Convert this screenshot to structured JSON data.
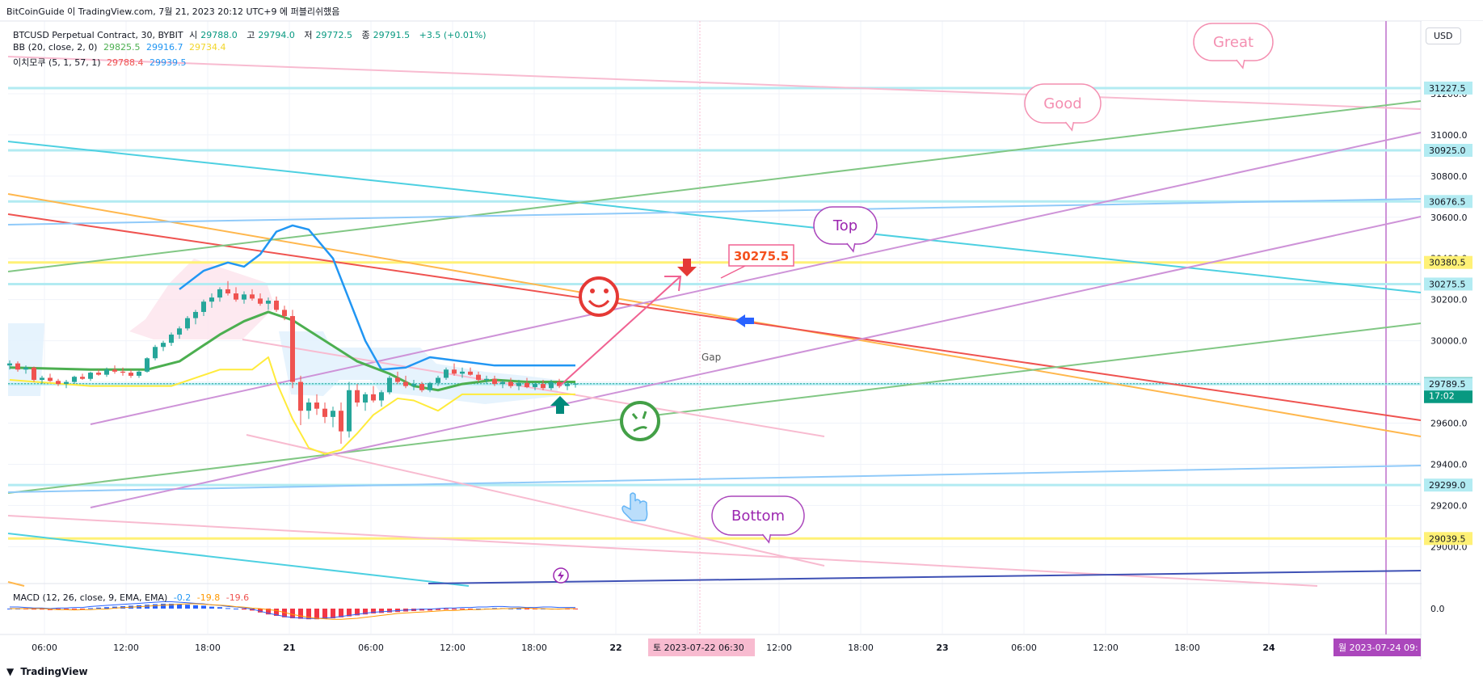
{
  "header": {
    "attribution": "BitCoinGuide 이 TradingView.com, 7월 21, 2023 20:12 UTC+9 에 퍼블리쉬했음",
    "symbol": "BTCUSD Perpetual Contract, 30, BYBIT",
    "ohlc": {
      "o_label": "시",
      "o": "29788.0",
      "h_label": "고",
      "h": "29794.0",
      "l_label": "저",
      "l": "29772.5",
      "c_label": "종",
      "c": "29791.5",
      "change": "+3.5 (+0.01%)"
    },
    "bb": {
      "label": "BB (20, close, 2, 0)",
      "basis": "29825.5",
      "upper": "29916.7",
      "lower": "29734.4"
    },
    "ichimoku": {
      "label": "이치모쿠 (5, 1, 57, 1)",
      "v1": "29788.4",
      "v2": "29939.5"
    },
    "macd": {
      "label": "MACD (12, 26, close, 9, EMA, EMA)",
      "v1": "-0.2",
      "v2": "-19.8",
      "v3": "-19.6"
    },
    "currency": "USD"
  },
  "footer": {
    "brand": "TradingView"
  },
  "colors": {
    "up": "#26a69a",
    "down": "#ef5350",
    "bb_basis": "#4caf50",
    "bb_upper": "#2196f3",
    "bb_lower": "#ffeb3b",
    "cyan_line": "#4dd0e1",
    "purple_line": "#ce93d8",
    "green_line": "#81c784",
    "blue_line": "#90caf9",
    "red_line": "#ef5350",
    "orange_line": "#ffb74d",
    "pink_line": "#f8bbd0",
    "navy_line": "#3f51b5"
  },
  "chart_data": {
    "type": "candlestick",
    "interval": "30",
    "y_axis": {
      "range": [
        28860,
        31400
      ],
      "ticks": [
        "31200.0",
        "31000.0",
        "30800.0",
        "30600.0",
        "30400.0",
        "30200.0",
        "30000.0",
        "29800.0",
        "29600.0",
        "29400.0",
        "29200.0",
        "29000.0"
      ]
    },
    "x_axis": {
      "ticks": [
        "06:00",
        "12:00",
        "18:00",
        "21",
        "06:00",
        "12:00",
        "18:00",
        "22",
        "06:00",
        "12:00",
        "18:00",
        "23",
        "06:00",
        "12:00",
        "18:00",
        "24"
      ]
    },
    "price_labels": [
      {
        "text": "31227.5",
        "value": 31227.5,
        "style": "cyan"
      },
      {
        "text": "30925.0",
        "value": 30925.0,
        "style": "cyan"
      },
      {
        "text": "30676.5",
        "value": 30676.5,
        "style": "cyan"
      },
      {
        "text": "30380.5",
        "value": 30380.5,
        "style": "yellow"
      },
      {
        "text": "30275.5",
        "value": 30275.5,
        "style": "cyan"
      },
      {
        "text": "29791.5",
        "value": 29791.5,
        "style": "current",
        "countdown": "17:02"
      },
      {
        "text": "29789.5",
        "value": 29789.5,
        "style": "cyan"
      },
      {
        "text": "29299.0",
        "value": 29299.0,
        "style": "cyan"
      },
      {
        "text": "29039.5",
        "value": 29039.5,
        "style": "yellow"
      }
    ],
    "date_labels": [
      {
        "text": "토 2023-07-22   06:30",
        "style": "pink"
      },
      {
        "text": "월 2023-07-24   09:",
        "style": "purple"
      }
    ],
    "annotations": {
      "great": "Great",
      "good": "Good",
      "top": "Top",
      "bottom": "Bottom",
      "target_price": "30275.5",
      "gap": "Gap"
    },
    "macd_axis": "0.0",
    "candles": [
      [
        29880,
        29905,
        29860,
        29890
      ],
      [
        29890,
        29900,
        29850,
        29860
      ],
      [
        29860,
        29880,
        29840,
        29870
      ],
      [
        29870,
        29875,
        29800,
        29810
      ],
      [
        29810,
        29830,
        29790,
        29820
      ],
      [
        29820,
        29840,
        29800,
        29805
      ],
      [
        29805,
        29815,
        29780,
        29790
      ],
      [
        29790,
        29810,
        29770,
        29800
      ],
      [
        29800,
        29830,
        29790,
        29825
      ],
      [
        29825,
        29840,
        29810,
        29815
      ],
      [
        29815,
        29850,
        29805,
        29845
      ],
      [
        29845,
        29860,
        29830,
        29835
      ],
      [
        29835,
        29870,
        29825,
        29860
      ],
      [
        29860,
        29880,
        29840,
        29850
      ],
      [
        29850,
        29870,
        29830,
        29845
      ],
      [
        29845,
        29860,
        29820,
        29830
      ],
      [
        29830,
        29855,
        29820,
        29850
      ],
      [
        29850,
        29920,
        29845,
        29915
      ],
      [
        29915,
        29980,
        29905,
        29970
      ],
      [
        29970,
        30000,
        29950,
        29990
      ],
      [
        29990,
        30040,
        29975,
        30030
      ],
      [
        30030,
        30070,
        30010,
        30060
      ],
      [
        30060,
        30120,
        30050,
        30110
      ],
      [
        30110,
        30150,
        30080,
        30140
      ],
      [
        30140,
        30200,
        30120,
        30190
      ],
      [
        30190,
        30230,
        30160,
        30210
      ],
      [
        30210,
        30260,
        30190,
        30250
      ],
      [
        30250,
        30290,
        30220,
        30230
      ],
      [
        30230,
        30260,
        30190,
        30200
      ],
      [
        30200,
        30240,
        30180,
        30225
      ],
      [
        30225,
        30250,
        30195,
        30205
      ],
      [
        30205,
        30230,
        30170,
        30180
      ],
      [
        30180,
        30210,
        30150,
        30195
      ],
      [
        30195,
        30215,
        30140,
        30150
      ],
      [
        30150,
        30170,
        30100,
        30120
      ],
      [
        30120,
        30150,
        29770,
        29800
      ],
      [
        29800,
        29830,
        29590,
        29660
      ],
      [
        29660,
        29720,
        29620,
        29700
      ],
      [
        29700,
        29740,
        29640,
        29670
      ],
      [
        29670,
        29700,
        29600,
        29630
      ],
      [
        29630,
        29680,
        29580,
        29660
      ],
      [
        29660,
        29700,
        29500,
        29560
      ],
      [
        29560,
        29800,
        29530,
        29760
      ],
      [
        29760,
        29790,
        29680,
        29700
      ],
      [
        29700,
        29750,
        29660,
        29740
      ],
      [
        29740,
        29780,
        29700,
        29710
      ],
      [
        29710,
        29760,
        29680,
        29750
      ],
      [
        29750,
        29830,
        29740,
        29820
      ],
      [
        29820,
        29850,
        29790,
        29800
      ],
      [
        29800,
        29830,
        29770,
        29780
      ],
      [
        29780,
        29810,
        29760,
        29790
      ],
      [
        29790,
        29800,
        29750,
        29760
      ],
      [
        29760,
        29800,
        29750,
        29795
      ],
      [
        29795,
        29830,
        29780,
        29820
      ],
      [
        29820,
        29870,
        29810,
        29860
      ],
      [
        29860,
        29890,
        29830,
        29840
      ],
      [
        29840,
        29870,
        29820,
        29850
      ],
      [
        29850,
        29870,
        29830,
        29835
      ],
      [
        29835,
        29850,
        29800,
        29810
      ],
      [
        29810,
        29830,
        29790,
        29815
      ],
      [
        29815,
        29830,
        29780,
        29790
      ],
      [
        29790,
        29810,
        29770,
        29800
      ],
      [
        29800,
        29820,
        29770,
        29780
      ],
      [
        29780,
        29810,
        29760,
        29795
      ],
      [
        29795,
        29820,
        29770,
        29775
      ],
      [
        29775,
        29800,
        29760,
        29790
      ],
      [
        29790,
        29810,
        29760,
        29770
      ],
      [
        29770,
        29810,
        29760,
        29800
      ],
      [
        29800,
        29815,
        29770,
        29780
      ],
      [
        29780,
        29800,
        29760,
        29790
      ],
      [
        29788,
        29794,
        29772.5,
        29791.5
      ]
    ],
    "bb_basis": [
      [
        0,
        29870
      ],
      [
        10,
        29860
      ],
      [
        17,
        29860
      ],
      [
        21,
        29900
      ],
      [
        26,
        30030
      ],
      [
        29,
        30095
      ],
      [
        32,
        30140
      ],
      [
        35,
        30100
      ],
      [
        39,
        30000
      ],
      [
        43,
        29900
      ],
      [
        47,
        29840
      ],
      [
        50,
        29780
      ],
      [
        53,
        29760
      ],
      [
        56,
        29790
      ],
      [
        60,
        29810
      ],
      [
        64,
        29800
      ],
      [
        70,
        29800
      ]
    ],
    "bb_upper": [
      [
        21,
        30250
      ],
      [
        24,
        30340
      ],
      [
        27,
        30380
      ],
      [
        29,
        30360
      ],
      [
        31,
        30420
      ],
      [
        33,
        30530
      ],
      [
        35,
        30560
      ],
      [
        37,
        30540
      ],
      [
        40,
        30400
      ],
      [
        42,
        30200
      ],
      [
        44,
        30000
      ],
      [
        46,
        29860
      ],
      [
        49,
        29870
      ],
      [
        52,
        29920
      ],
      [
        56,
        29900
      ],
      [
        60,
        29880
      ],
      [
        70,
        29880
      ]
    ],
    "bb_lower": [
      [
        0,
        29810
      ],
      [
        10,
        29780
      ],
      [
        20,
        29780
      ],
      [
        26,
        29860
      ],
      [
        30,
        29860
      ],
      [
        32,
        29920
      ],
      [
        33,
        29800
      ],
      [
        35,
        29620
      ],
      [
        37,
        29480
      ],
      [
        39,
        29450
      ],
      [
        41,
        29470
      ],
      [
        43,
        29550
      ],
      [
        45,
        29640
      ],
      [
        48,
        29720
      ],
      [
        50,
        29710
      ],
      [
        53,
        29660
      ],
      [
        56,
        29740
      ],
      [
        60,
        29740
      ],
      [
        70,
        29740
      ]
    ],
    "macd": {
      "zero": 0,
      "histogram": [
        0,
        0,
        -1,
        -2,
        -2,
        -3,
        -2,
        -2,
        -1,
        -1,
        1,
        2,
        3,
        4,
        5,
        6,
        7,
        8,
        9,
        10,
        10,
        9,
        8,
        7,
        6,
        4,
        3,
        1,
        0,
        -2,
        -4,
        -8,
        -12,
        -15,
        -18,
        -20,
        -21,
        -22,
        -22,
        -21,
        -20,
        -18,
        -16,
        -14,
        -12,
        -10,
        -9,
        -8,
        -7,
        -6,
        -5,
        -4,
        -4,
        -3,
        -2,
        -2,
        -1,
        -1,
        0,
        0,
        1,
        1,
        0,
        0,
        -1,
        -1,
        0,
        0,
        -1,
        -1,
        -1
      ]
    }
  }
}
